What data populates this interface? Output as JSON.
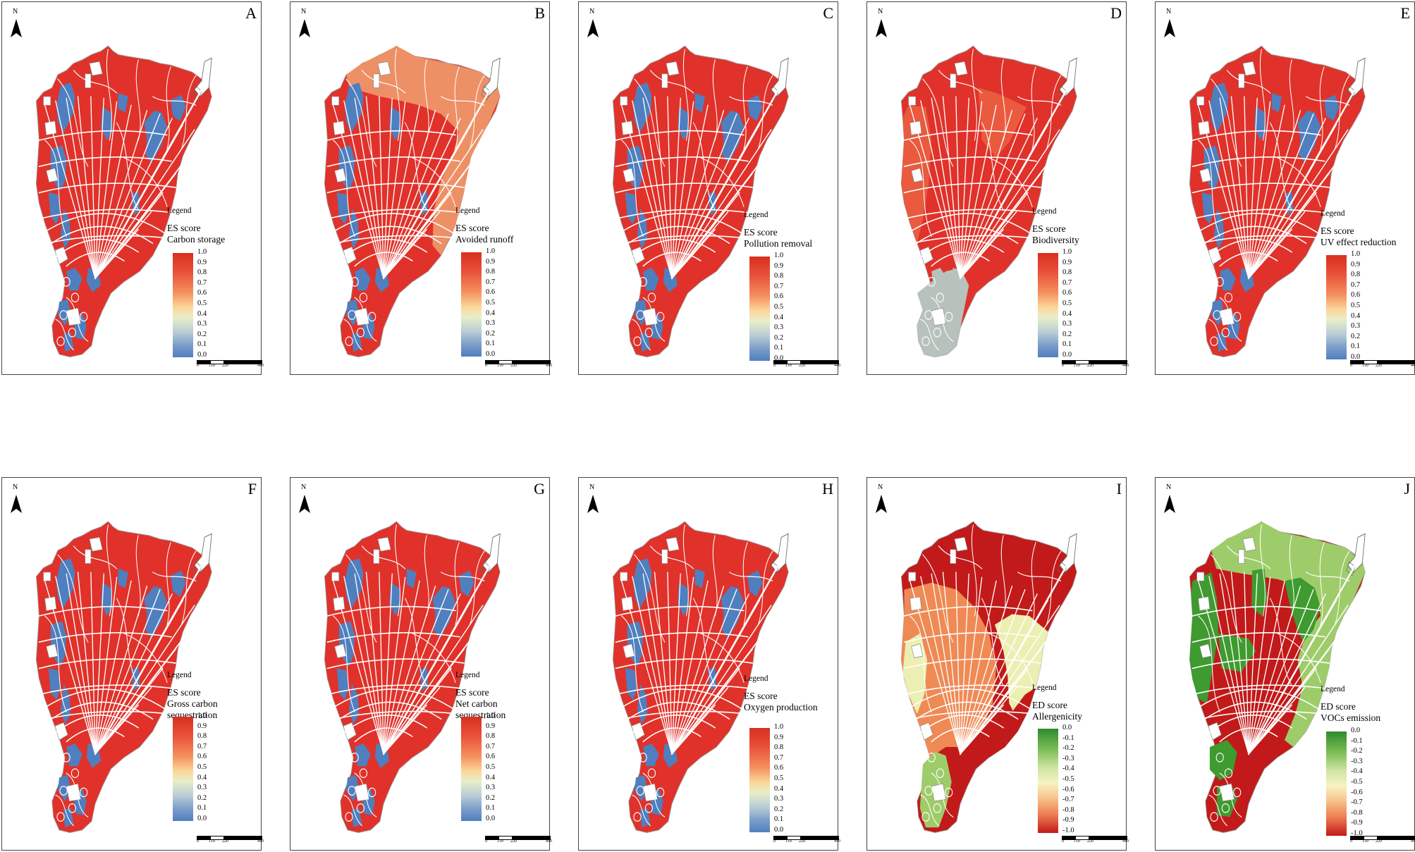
{
  "north_label": "N",
  "legend_label": "Legend",
  "scale_labels": [
    "0",
    "110",
    "220",
    "440"
  ],
  "colors": {
    "red": "#e0322a",
    "dark_red": "#c21a1a",
    "salmon": "#ee9065",
    "blue": "#4f7fbf",
    "gray": "#b8c2bd",
    "green": "#3f9a2f",
    "light_green": "#9fcc6a",
    "pale_yellow": "#ecefb2",
    "orange": "#ef8a55"
  },
  "es_ticks": [
    "1.0",
    "0.9",
    "0.8",
    "0.7",
    "0.6",
    "0.5",
    "0.4",
    "0.3",
    "0.2",
    "0.1",
    "0.0"
  ],
  "ed_ticks": [
    "0.0",
    "-0.1",
    "-0.2",
    "-0.3",
    "-0.4",
    "-0.5",
    "-0.6",
    "-0.7",
    "-0.8",
    "-0.9",
    "-1.0"
  ],
  "panels": [
    {
      "letter": "A",
      "score": "ES score",
      "metric_lines": [
        "Carbon storage"
      ],
      "scheme": "es",
      "map": "standard"
    },
    {
      "letter": "B",
      "score": "ES score",
      "metric_lines": [
        "Avoided runoff"
      ],
      "scheme": "es",
      "map": "runoff"
    },
    {
      "letter": "C",
      "score": "ES score",
      "metric_lines": [
        "Pollution removal"
      ],
      "scheme": "es",
      "map": "standard"
    },
    {
      "letter": "D",
      "score": "ES score",
      "metric_lines": [
        "Biodiversity"
      ],
      "scheme": "es",
      "map": "biodiversity"
    },
    {
      "letter": "E",
      "score": "ES score",
      "metric_lines": [
        "UV effect reduction"
      ],
      "scheme": "es",
      "map": "standard"
    },
    {
      "letter": "F",
      "score": "ES score",
      "metric_lines": [
        "Gross carbon",
        "sequestration"
      ],
      "scheme": "es",
      "map": "standard"
    },
    {
      "letter": "G",
      "score": "ES score",
      "metric_lines": [
        "Net carbon",
        "sequestration"
      ],
      "scheme": "es",
      "map": "standard"
    },
    {
      "letter": "H",
      "score": "ES score",
      "metric_lines": [
        "Oxygen production"
      ],
      "scheme": "es",
      "map": "standard"
    },
    {
      "letter": "I",
      "score": "ED score",
      "metric_lines": [
        "Allergenicity"
      ],
      "scheme": "ed",
      "map": "allergenicity"
    },
    {
      "letter": "J",
      "score": "ED score",
      "metric_lines": [
        "VOCs emission"
      ],
      "scheme": "ed",
      "map": "vocs"
    }
  ]
}
